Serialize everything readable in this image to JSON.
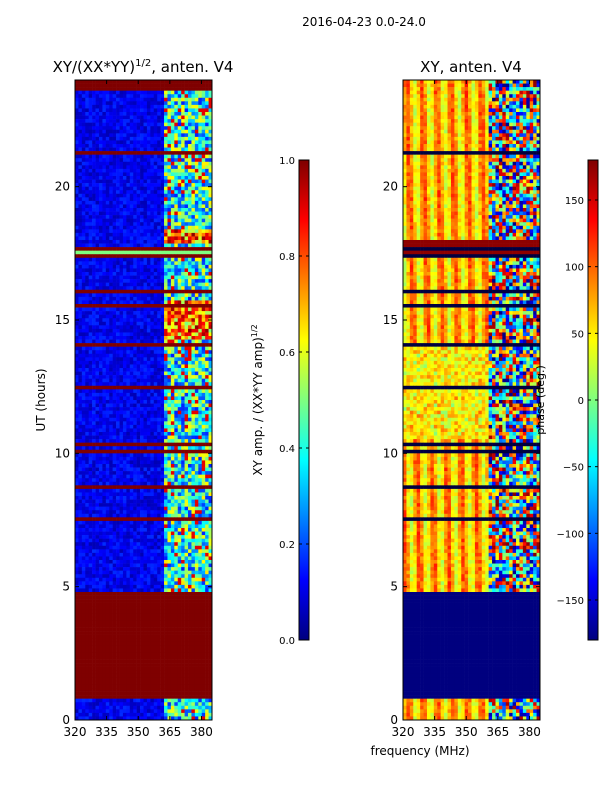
{
  "suptitle": "2016-04-23 0.0-24.0",
  "colors": {
    "jet": [
      "#00007f",
      "#0000ff",
      "#007fff",
      "#00ffff",
      "#7fff7f",
      "#ffff00",
      "#ff7f00",
      "#ff0000",
      "#7f0000"
    ],
    "axis": "#000000",
    "background": "#ffffff"
  },
  "chart_data": [
    {
      "type": "heatmap",
      "title_base": "XY/(XX*YY)",
      "title_sup": "1/2",
      "title_suffix": ", anten. V4",
      "ylabel": "UT (hours)",
      "xlabel": "",
      "xlim": [
        320,
        385
      ],
      "ylim": [
        0,
        24
      ],
      "xticks": [
        320,
        335,
        350,
        365,
        380
      ],
      "yticks": [
        0,
        5,
        10,
        15,
        20
      ],
      "data_summary": "Mostly low normalized amplitude (0-0.2) below 363 MHz; patchy high values above 363 MHz; saturated (~1.0) band 0.8-4.8 h and strip near 17.5 h",
      "colorbar": {
        "label_base": "XY amp. / (XX*YY amp)",
        "label_sup": "1/2",
        "min": 0.0,
        "max": 1.0,
        "ticks": [
          "0.0",
          "0.2",
          "0.4",
          "0.6",
          "0.8",
          "1.0"
        ]
      }
    },
    {
      "type": "heatmap",
      "title": "XY, anten. V4",
      "ylabel": "",
      "xlabel": "frequency (MHz)",
      "xlim": [
        320,
        385
      ],
      "ylim": [
        0,
        24
      ],
      "xticks": [
        320,
        335,
        350,
        365,
        380
      ],
      "yticks": [
        0,
        5,
        10,
        15,
        20
      ],
      "data_summary": "Phase mostly 30-120 deg below 360 MHz; rapidly varying -180 to 180 deg above 360 MHz; ~-180 deg band 0.8-4.8 h",
      "colorbar": {
        "label": "phase (deg.)",
        "min": -180,
        "max": 180,
        "ticks": [
          "−150",
          "−100",
          "−50",
          "0",
          "50",
          "100",
          "150"
        ]
      }
    }
  ]
}
